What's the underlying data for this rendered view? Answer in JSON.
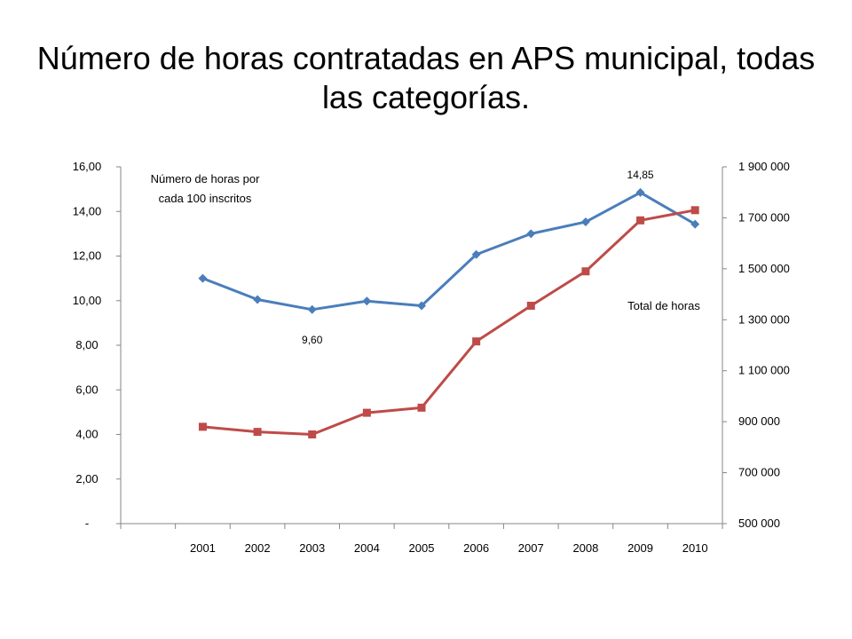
{
  "slide": {
    "title": "Número de horas contratadas en APS municipal, todas las categorías."
  },
  "chart_data": {
    "type": "line",
    "title": "",
    "categories": [
      "2001",
      "2002",
      "2003",
      "2004",
      "2005",
      "2006",
      "2007",
      "2008",
      "2009",
      "2010"
    ],
    "y_left": {
      "ylim": [
        0,
        16
      ],
      "ticks": [
        0,
        2,
        4,
        6,
        8,
        10,
        12,
        14,
        16
      ],
      "tick_labels": [
        "-",
        "2,00",
        "4,00",
        "6,00",
        "8,00",
        "10,00",
        "12,00",
        "14,00",
        "16,00"
      ]
    },
    "y_right": {
      "ylim": [
        500000,
        1900000
      ],
      "ticks": [
        500000,
        700000,
        900000,
        1100000,
        1300000,
        1500000,
        1700000,
        1900000
      ],
      "tick_labels": [
        "500 000",
        "700 000",
        "900 000",
        "1 100 000",
        "1 300 000",
        "1 500 000",
        "1 700 000",
        "1 900 000"
      ]
    },
    "series": [
      {
        "axis": "left",
        "color": "#4a7ebb",
        "marker": "diamond",
        "values": [
          11.0,
          10.05,
          9.6,
          9.98,
          9.77,
          12.07,
          13.0,
          13.53,
          14.85,
          13.43
        ]
      },
      {
        "axis": "right",
        "color": "#be4b48",
        "marker": "square",
        "values": [
          880000,
          860000,
          850000,
          935000,
          955000,
          1215000,
          1355000,
          1490000,
          1690000,
          1730000
        ]
      }
    ],
    "annotations": [
      {
        "text_lines": [
          "Número de horas por",
          "cada 100 inscritos"
        ]
      },
      {
        "text": "Total de horas"
      }
    ],
    "data_labels": [
      {
        "series": 0,
        "index": 2,
        "text": "9,60"
      },
      {
        "series": 0,
        "index": 8,
        "text": "14,85"
      }
    ],
    "grid": false,
    "legend": "none"
  }
}
